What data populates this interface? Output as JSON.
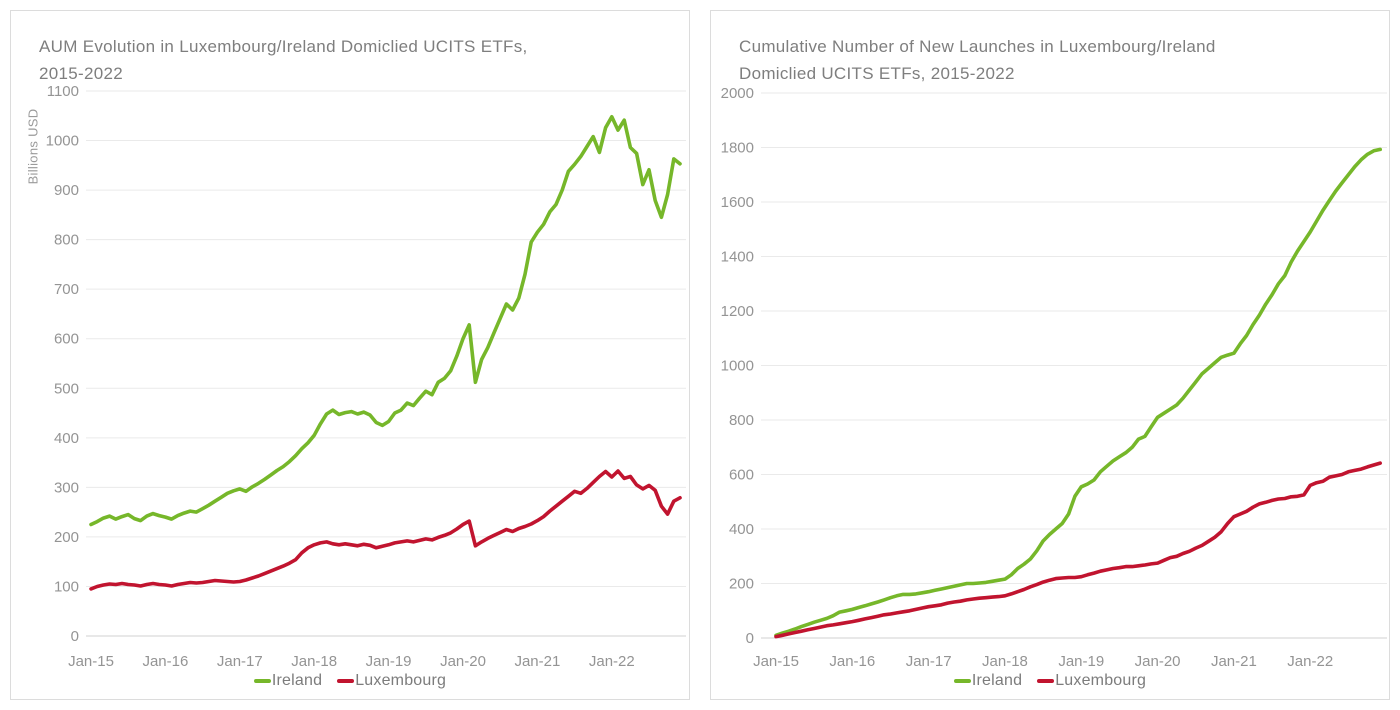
{
  "page": {
    "background": "#ffffff",
    "panel_border": "#dcdcdc"
  },
  "colors": {
    "ireland": "#76B72A",
    "luxembourg": "#C1142F",
    "gridline": "#EAEAEA",
    "axis_line": "#D2D2D2",
    "tick_text": "#949494",
    "title_text": "#7E7E7E"
  },
  "chart_data": [
    {
      "type": "line",
      "title": "AUM Evolution in Luxembourg/Ireland Domiclied UCITS ETFs, 2015-2022",
      "title_lines": [
        "AUM Evolution in Luxembourg/Ireland Domiclied UCITS ETFs,",
        "2015-2022"
      ],
      "ylabel": "Billions USD",
      "xlabel": "",
      "ylim": [
        0,
        1100
      ],
      "y_ticks": [
        0,
        100,
        200,
        300,
        400,
        500,
        600,
        700,
        800,
        900,
        1000,
        1100
      ],
      "xtick_labels": [
        "Jan-15",
        "Jan-16",
        "Jan-17",
        "Jan-18",
        "Jan-19",
        "Jan-20",
        "Jan-21",
        "Jan-22"
      ],
      "x_unit": "monthly, Jan-2015 through Dec-2022, 96 points",
      "grid": "horizontal",
      "legend_position": "bottom",
      "series": [
        {
          "name": "Ireland",
          "color": "#76B72A",
          "values": [
            225,
            231,
            238,
            242,
            236,
            241,
            245,
            237,
            233,
            242,
            247,
            243,
            240,
            236,
            243,
            248,
            252,
            250,
            257,
            264,
            272,
            280,
            288,
            293,
            297,
            292,
            301,
            308,
            316,
            325,
            334,
            342,
            352,
            364,
            378,
            390,
            405,
            428,
            448,
            456,
            447,
            451,
            453,
            448,
            452,
            446,
            431,
            425,
            433,
            450,
            456,
            470,
            465,
            480,
            494,
            487,
            512,
            520,
            535,
            565,
            600,
            628,
            512,
            558,
            582,
            612,
            641,
            670,
            658,
            682,
            730,
            795,
            815,
            831,
            856,
            871,
            900,
            938,
            952,
            968,
            988,
            1008,
            976,
            1026,
            1048,
            1021,
            1041,
            986,
            974,
            911,
            941,
            879,
            845,
            891,
            963,
            953
          ]
        },
        {
          "name": "Luxembourg",
          "color": "#C1142F",
          "values": [
            95,
            100,
            103,
            105,
            104,
            106,
            104,
            103,
            101,
            104,
            106,
            104,
            103,
            101,
            104,
            106,
            108,
            107,
            108,
            110,
            112,
            111,
            110,
            109,
            110,
            113,
            117,
            121,
            126,
            131,
            136,
            141,
            147,
            154,
            168,
            178,
            184,
            188,
            190,
            186,
            184,
            186,
            184,
            182,
            185,
            183,
            178,
            181,
            184,
            188,
            190,
            192,
            190,
            193,
            196,
            194,
            199,
            203,
            208,
            216,
            225,
            232,
            182,
            190,
            197,
            203,
            209,
            215,
            211,
            217,
            221,
            226,
            233,
            241,
            252,
            262,
            272,
            282,
            292,
            288,
            298,
            310,
            322,
            332,
            321,
            333,
            318,
            322,
            305,
            297,
            304,
            294,
            262,
            246,
            272,
            279
          ]
        }
      ]
    },
    {
      "type": "line",
      "title": "Cumulative Number of New Launches in Luxembourg/Ireland Domiclied UCITS ETFs, 2015-2022",
      "title_lines": [
        "Cumulative Number of New Launches in Luxembourg/Ireland",
        "Domiclied UCITS ETFs, 2015-2022"
      ],
      "ylabel": "",
      "xlabel": "",
      "ylim": [
        0,
        2000
      ],
      "y_ticks": [
        0,
        200,
        400,
        600,
        800,
        1000,
        1200,
        1400,
        1600,
        1800,
        2000
      ],
      "xtick_labels": [
        "Jan-15",
        "Jan-16",
        "Jan-17",
        "Jan-18",
        "Jan-19",
        "Jan-20",
        "Jan-21",
        "Jan-22"
      ],
      "x_unit": "monthly, Jan-2015 through Dec-2022, 96 points",
      "grid": "horizontal",
      "legend_position": "bottom",
      "series": [
        {
          "name": "Ireland",
          "color": "#76B72A",
          "values": [
            10,
            18,
            25,
            33,
            42,
            50,
            58,
            65,
            72,
            82,
            95,
            100,
            105,
            112,
            118,
            125,
            132,
            140,
            148,
            155,
            160,
            160,
            162,
            166,
            170,
            175,
            180,
            185,
            190,
            195,
            200,
            200,
            202,
            204,
            208,
            212,
            216,
            232,
            255,
            271,
            290,
            320,
            356,
            380,
            400,
            420,
            455,
            520,
            555,
            565,
            580,
            610,
            630,
            650,
            665,
            680,
            700,
            730,
            740,
            775,
            810,
            825,
            840,
            855,
            880,
            910,
            940,
            970,
            990,
            1010,
            1030,
            1038,
            1045,
            1080,
            1110,
            1150,
            1185,
            1225,
            1260,
            1300,
            1330,
            1380,
            1420,
            1455,
            1490,
            1530,
            1570,
            1605,
            1640,
            1670,
            1700,
            1730,
            1755,
            1775,
            1788,
            1793
          ]
        },
        {
          "name": "Luxembourg",
          "color": "#C1142F",
          "values": [
            5,
            10,
            15,
            20,
            25,
            30,
            35,
            40,
            45,
            48,
            52,
            56,
            60,
            65,
            70,
            75,
            80,
            85,
            88,
            92,
            96,
            100,
            105,
            110,
            115,
            118,
            122,
            128,
            132,
            135,
            140,
            143,
            146,
            148,
            150,
            152,
            155,
            162,
            170,
            178,
            188,
            196,
            205,
            212,
            218,
            220,
            222,
            222,
            225,
            232,
            238,
            245,
            250,
            255,
            258,
            262,
            262,
            265,
            268,
            272,
            275,
            285,
            295,
            300,
            310,
            318,
            330,
            340,
            355,
            370,
            390,
            420,
            445,
            455,
            465,
            480,
            492,
            498,
            505,
            510,
            512,
            518,
            520,
            525,
            560,
            570,
            575,
            590,
            595,
            600,
            610,
            615,
            620,
            628,
            635,
            642
          ]
        }
      ]
    }
  ]
}
